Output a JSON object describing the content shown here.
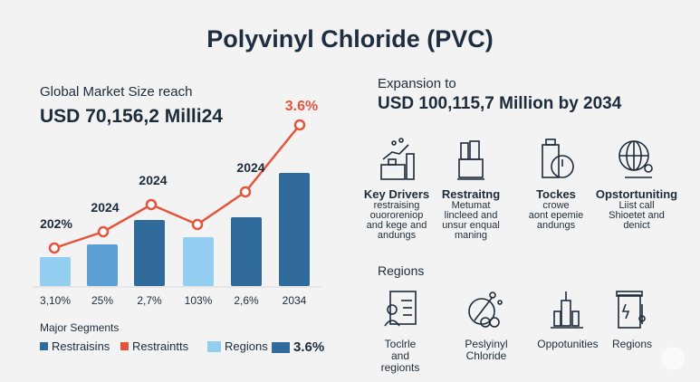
{
  "title": "Polyvinyl Chloride (PVC)",
  "left": {
    "subtitle": "Global Market Size reach",
    "headline": "USD 70,156,2 Milli24"
  },
  "right": {
    "subtitle": "Expansion to",
    "headline": "USD 100,115,7 Million by 2034"
  },
  "chart_data": {
    "type": "bar",
    "categories": [
      "3,10%",
      "25%",
      "2,7%",
      "103%",
      "2,6%",
      "2034"
    ],
    "bar_values": [
      32,
      46,
      73,
      54,
      76,
      125
    ],
    "bar_colors": [
      "#93cdef",
      "#5b9fd4",
      "#2f6a9a",
      "#93cdef",
      "#2f6a9a",
      "#2f6a9a"
    ],
    "line_values": [
      42,
      60,
      90,
      68,
      104,
      178
    ],
    "line_color": "#e4533a",
    "point_labels": [
      "202%",
      "2024",
      "2024",
      "",
      "2024",
      "3.6%"
    ],
    "grid": false
  },
  "segments": {
    "title": "Major Segments",
    "legend": [
      {
        "label": "Restraisins",
        "color": "#2f6a9a"
      },
      {
        "label": "Restraintts",
        "color": "#e4533a"
      },
      {
        "label": "Regions",
        "color": "#93cdef"
      },
      {
        "label": "3.6%",
        "color": "#2f6a9a"
      }
    ]
  },
  "drivers": [
    {
      "icon": "factory-growth-icon",
      "title": "Key Drivers",
      "text": [
        "restraising",
        "ouororeniop",
        "and kege and",
        "andungs"
      ]
    },
    {
      "icon": "industrial-plant-icon",
      "title": "Restraitng",
      "text": [
        "Metumat",
        "lincleed and",
        "unsur enqual",
        "maning"
      ]
    },
    {
      "icon": "clock-icon",
      "title": "Tockes",
      "text": [
        "crowe",
        "aont epemie",
        "andungs"
      ]
    },
    {
      "icon": "globe-icon",
      "title": "Opstortuniting",
      "text": [
        "Liist call",
        "Shioetet and",
        "denict"
      ]
    }
  ],
  "regions": {
    "title": "Regions",
    "items": [
      {
        "icon": "person-document-icon",
        "text": [
          "Toclrle",
          "and",
          "regionts"
        ]
      },
      {
        "icon": "molecule-icon",
        "text": [
          "Peslyinyl",
          "Chloride"
        ]
      },
      {
        "icon": "city-icon",
        "text": [
          "Oppotunities"
        ]
      },
      {
        "icon": "power-panel-icon",
        "text": [
          "Regions"
        ]
      }
    ]
  }
}
